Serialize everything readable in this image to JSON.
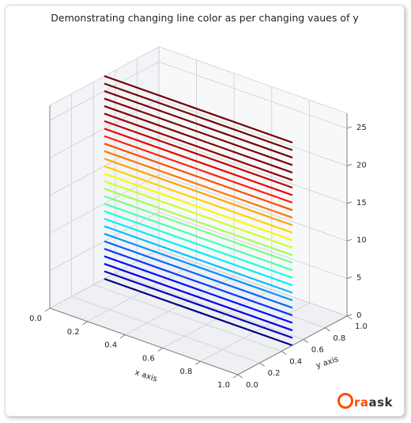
{
  "chart": {
    "type": "line-3d",
    "title": "Demonstrating changing line color as per changing vaues of y",
    "title_fontsize": 12.5,
    "background_color": "#ffffff",
    "pane_colors": {
      "floor": "#eef0f3",
      "left_wall": "#f2f4f7",
      "right_wall": "#f7f8fa"
    },
    "grid_color": "#cfcfcf",
    "edge_color": "#808080",
    "axes": {
      "x": {
        "label": "x axis",
        "lim": [
          0.0,
          1.0
        ],
        "ticks": [
          0.0,
          0.2,
          0.4,
          0.6,
          0.8,
          1.0
        ],
        "label_fontsize": 10
      },
      "y": {
        "label": "y axis",
        "lim": [
          0.0,
          1.0
        ],
        "ticks": [
          0.0,
          0.2,
          0.4,
          0.6,
          0.8,
          1.0
        ],
        "label_fontsize": 10
      },
      "z": {
        "label": "",
        "lim": [
          0,
          27
        ],
        "ticks": [
          0,
          5,
          10,
          15,
          20,
          25
        ],
        "label_fontsize": 10
      }
    },
    "series": {
      "y_const": 0.5,
      "x_range": [
        0.0,
        1.0
      ],
      "z_values": [
        0,
        1,
        2,
        3,
        4,
        5,
        6,
        7,
        8,
        9,
        10,
        11,
        12,
        13,
        14,
        15,
        16,
        17,
        18,
        19,
        20,
        21,
        22,
        23,
        24,
        25,
        26,
        27
      ],
      "line_width": 2.2,
      "colors": [
        "#000083",
        "#0000bb",
        "#0000ef",
        "#0010ff",
        "#003cff",
        "#0068ff",
        "#0094ff",
        "#00c0ff",
        "#00ecf6",
        "#1cffda",
        "#48ffad",
        "#74ff81",
        "#a0ff55",
        "#ccff29",
        "#f8f900",
        "#ffd000",
        "#ffa400",
        "#ff7800",
        "#ff4c00",
        "#ff2000",
        "#eb0000",
        "#c30000",
        "#9b0000",
        "#830000",
        "#7f0000",
        "#7a0000",
        "#760000",
        "#720000"
      ]
    },
    "tick_fontsize": 10
  },
  "watermark": {
    "text": "raask",
    "color_primary": "#ff4d00",
    "color_secondary": "#333333"
  }
}
